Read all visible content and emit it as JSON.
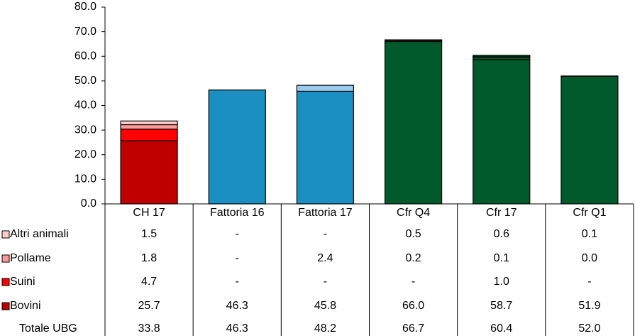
{
  "chart_data": {
    "type": "stacked_bar",
    "categories": [
      "CH 17",
      "Fattoria 16",
      "Fattoria 17",
      "Cfr Q4",
      "Cfr 17",
      "Cfr Q1"
    ],
    "series": [
      {
        "name": "Bovini",
        "color": "#c00000",
        "bar_colors": [
          "#c00000",
          "#1b8ec2",
          "#1b8ec2",
          "#005a2b",
          "#005a2b",
          "#005a2b"
        ],
        "values": [
          25.7,
          46.3,
          45.8,
          66.0,
          58.7,
          51.9
        ],
        "value_labels": [
          "25.7",
          "46.3",
          "45.8",
          "66.0",
          "58.7",
          "51.9"
        ]
      },
      {
        "name": "Suini",
        "color": "#ff0000",
        "bar_colors": [
          "#ff0000",
          "#1b8ec2",
          "#1b8ec2",
          "#005a2b",
          "#005a2b",
          "#005a2b"
        ],
        "values": [
          4.7,
          null,
          null,
          null,
          1.0,
          null
        ],
        "value_labels": [
          "4.7",
          "-",
          "-",
          "-",
          "1.0",
          "-"
        ]
      },
      {
        "name": "Pollame",
        "color": "#ff9999",
        "bar_colors": [
          "#ff9999",
          "#99cdee",
          "#99cdee",
          "#005a2b",
          "#005a2b",
          "#005a2b"
        ],
        "values": [
          1.8,
          null,
          2.4,
          0.2,
          0.1,
          0.0
        ],
        "value_labels": [
          "1.8",
          "-",
          "2.4",
          "0.2",
          "0.1",
          "0.0"
        ]
      },
      {
        "name": "Altri animali",
        "color": "#ffcccc",
        "bar_colors": [
          "#ffcccc",
          "#cce6f6",
          "#cce6f6",
          "#005a2b",
          "#005a2b",
          "#005a2b"
        ],
        "values": [
          1.5,
          null,
          null,
          0.5,
          0.6,
          0.1
        ],
        "value_labels": [
          "1.5",
          "-",
          "-",
          "0.5",
          "0.6",
          "0.1"
        ]
      }
    ],
    "totals": {
      "name": "Totale UBG",
      "values": [
        "33.8",
        "46.3",
        "48.2",
        "66.7",
        "60.4",
        "52.0"
      ]
    },
    "ylim": [
      0,
      80
    ],
    "yticks": [
      {
        "value": 0,
        "label": "0.0"
      },
      {
        "value": 10,
        "label": "10.0"
      },
      {
        "value": 20,
        "label": "20.0"
      },
      {
        "value": 30,
        "label": "30.0"
      },
      {
        "value": 40,
        "label": "40.0"
      },
      {
        "value": 50,
        "label": "50.0"
      },
      {
        "value": 60,
        "label": "60.0"
      },
      {
        "value": 70,
        "label": "70.0"
      },
      {
        "value": 80,
        "label": "80.0"
      }
    ]
  }
}
